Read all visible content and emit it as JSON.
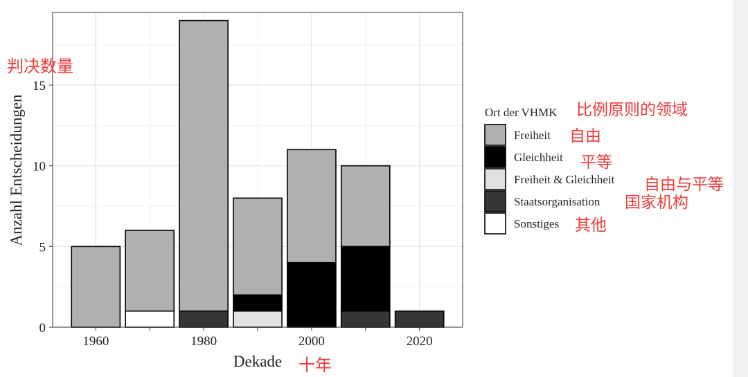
{
  "chart_data": {
    "type": "bar",
    "stacked": true,
    "xlabel": "Dekade",
    "xlabel_annotation": "十年",
    "ylabel": "Anzahl Entscheidungen",
    "ylabel_annotation": "判决数量",
    "x": [
      1960,
      1970,
      1980,
      1990,
      2000,
      2010,
      2020
    ],
    "x_ticks": [
      "1960",
      "1980",
      "2000",
      "2020"
    ],
    "y_ticks": [
      "0",
      "5",
      "10",
      "15"
    ],
    "ylim": [
      0,
      19.5
    ],
    "xlim": [
      1952,
      2028
    ],
    "grid": true,
    "legend": {
      "title": "Ort der VHMK",
      "title_annotation": "比例原则的领域",
      "position": "right",
      "entries": [
        {
          "label": "Freiheit",
          "annotation": "自由",
          "color": "#b0b0b0"
        },
        {
          "label": "Gleichheit",
          "annotation": "平等",
          "color": "#000000"
        },
        {
          "label": "Freiheit & Gleichheit",
          "annotation": "自由与平等",
          "color": "#e0e0e0"
        },
        {
          "label": "Staatsorganisation",
          "annotation": "国家机构",
          "color": "#363636"
        },
        {
          "label": "Sonstiges",
          "annotation": "其他",
          "color": "#ffffff"
        }
      ]
    },
    "series": [
      {
        "name": "Staatsorganisation",
        "color": "#363636",
        "values": [
          0,
          0,
          1,
          0,
          0,
          1,
          1
        ]
      },
      {
        "name": "Sonstiges",
        "color": "#ffffff",
        "values": [
          0,
          1,
          0,
          0,
          0,
          0,
          0
        ]
      },
      {
        "name": "Freiheit & Gleichheit",
        "color": "#e0e0e0",
        "values": [
          0,
          0,
          0,
          1,
          0,
          0,
          0
        ]
      },
      {
        "name": "Gleichheit",
        "color": "#000000",
        "values": [
          0,
          0,
          0,
          1,
          4,
          4,
          0
        ]
      },
      {
        "name": "Freiheit",
        "color": "#b0b0b0",
        "values": [
          5,
          5,
          18,
          6,
          7,
          5,
          0
        ]
      }
    ]
  }
}
